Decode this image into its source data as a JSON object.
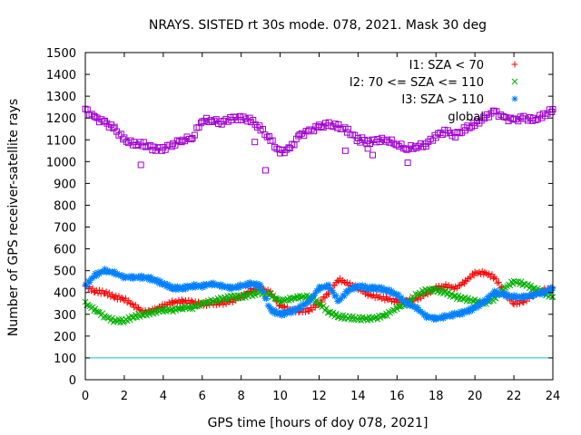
{
  "chart_data": {
    "type": "scatter",
    "title": "NRAYS. SISTED rt 30s mode. 078, 2021. Mask 30 deg",
    "xlabel": "GPS time [hours of doy 078, 2021]",
    "ylabel": "Number of GPS receiver-satellite rays",
    "xlim": [
      0,
      24
    ],
    "ylim": [
      0,
      1500
    ],
    "xticks": [
      0,
      2,
      4,
      6,
      8,
      10,
      12,
      14,
      16,
      18,
      20,
      22,
      24
    ],
    "yticks": [
      0,
      100,
      200,
      300,
      400,
      500,
      600,
      700,
      800,
      900,
      1000,
      1100,
      1200,
      1300,
      1400,
      1500
    ],
    "threshold_line": {
      "y": 100,
      "color": "#00c0e0"
    },
    "legend_position": "top-right",
    "series": [
      {
        "name": "I1: SZA < 70",
        "marker": "plus",
        "color": "#ff0000",
        "x": [
          0,
          0.5,
          1,
          1.5,
          2,
          2.5,
          3,
          3.5,
          4,
          4.5,
          5,
          5.5,
          6,
          6.5,
          7,
          7.5,
          8,
          8.5,
          9,
          9.5,
          10,
          10.5,
          11,
          11.5,
          12,
          12.5,
          13,
          13.5,
          14,
          14.5,
          15,
          15.5,
          16,
          16.5,
          17,
          17.5,
          18,
          18.5,
          19,
          19.5,
          20,
          20.5,
          21,
          21.5,
          22,
          22.5,
          23,
          23.5,
          24
        ],
        "values": [
          430,
          405,
          400,
          380,
          370,
          340,
          310,
          320,
          340,
          355,
          360,
          355,
          345,
          350,
          350,
          360,
          380,
          410,
          420,
          400,
          340,
          320,
          315,
          320,
          350,
          400,
          460,
          440,
          420,
          390,
          380,
          370,
          360,
          360,
          370,
          395,
          420,
          430,
          420,
          450,
          490,
          490,
          470,
          400,
          350,
          360,
          390,
          410,
          420
        ]
      },
      {
        "name": "I2: 70 <= SZA <= 110",
        "marker": "cross",
        "color": "#00b000",
        "x": [
          0,
          0.5,
          1,
          1.5,
          2,
          2.5,
          3,
          3.5,
          4,
          4.5,
          5,
          5.5,
          6,
          6.5,
          7,
          7.5,
          8,
          8.5,
          9,
          9.5,
          10,
          10.5,
          11,
          11.5,
          12,
          12.5,
          13,
          13.5,
          14,
          14.5,
          15,
          15.5,
          16,
          16.5,
          17,
          17.5,
          18,
          18.5,
          19,
          19.5,
          20,
          20.5,
          21,
          21.5,
          22,
          22.5,
          23,
          23.5,
          24
        ],
        "values": [
          350,
          320,
          290,
          270,
          270,
          290,
          300,
          310,
          320,
          320,
          330,
          330,
          350,
          360,
          370,
          380,
          380,
          390,
          400,
          390,
          360,
          370,
          380,
          380,
          350,
          310,
          290,
          285,
          280,
          280,
          285,
          300,
          330,
          350,
          390,
          410,
          410,
          400,
          380,
          370,
          360,
          350,
          370,
          420,
          450,
          440,
          420,
          400,
          380
        ]
      },
      {
        "name": "I3: SZA > 110",
        "marker": "star",
        "color": "#0080ff",
        "x": [
          0,
          0.5,
          1,
          1.5,
          2,
          2.5,
          3,
          3.5,
          4,
          4.5,
          5,
          5.5,
          6,
          6.5,
          7,
          7.5,
          8,
          8.5,
          9,
          9.5,
          10,
          10.5,
          11,
          11.5,
          12,
          12.5,
          13,
          13.5,
          14,
          14.5,
          15,
          15.5,
          16,
          16.5,
          17,
          17.5,
          18,
          18.5,
          19,
          19.5,
          20,
          20.5,
          21,
          21.5,
          22,
          22.5,
          23,
          23.5,
          24
        ],
        "values": [
          430,
          480,
          500,
          490,
          470,
          470,
          470,
          460,
          440,
          420,
          420,
          430,
          430,
          440,
          430,
          420,
          430,
          440,
          430,
          320,
          300,
          310,
          330,
          360,
          420,
          430,
          360,
          410,
          430,
          420,
          420,
          410,
          390,
          350,
          330,
          290,
          280,
          290,
          300,
          310,
          330,
          360,
          400,
          390,
          380,
          380,
          390,
          400,
          420
        ]
      },
      {
        "name": "global",
        "marker": "square",
        "color": "#a000d0",
        "x": [
          0,
          0.5,
          1,
          1.5,
          2,
          2.5,
          3,
          3.5,
          4,
          4.5,
          5,
          5.5,
          6,
          6.5,
          7,
          7.5,
          8,
          8.5,
          9,
          9.5,
          10,
          10.5,
          11,
          11.5,
          12,
          12.5,
          13,
          13.5,
          14,
          14.5,
          15,
          15.5,
          16,
          16.5,
          17,
          17.5,
          18,
          18.5,
          19,
          19.5,
          20,
          20.5,
          21,
          21.5,
          22,
          22.5,
          23,
          23.5,
          24
        ],
        "values": [
          1240,
          1200,
          1180,
          1150,
          1100,
          1080,
          1080,
          1060,
          1060,
          1080,
          1100,
          1110,
          1190,
          1190,
          1180,
          1200,
          1200,
          1190,
          1150,
          1100,
          1040,
          1060,
          1120,
          1140,
          1160,
          1170,
          1160,
          1140,
          1100,
          1090,
          1100,
          1100,
          1080,
          1060,
          1070,
          1080,
          1120,
          1140,
          1120,
          1150,
          1170,
          1200,
          1230,
          1200,
          1190,
          1200,
          1190,
          1210,
          1240
        ],
        "outliers_x": [
          2.85,
          8.7,
          9.25,
          13.35,
          14.5,
          14.75,
          16.55,
          14.2
        ],
        "outliers_y": [
          985,
          1090,
          960,
          1050,
          1060,
          1030,
          995,
          1110
        ]
      }
    ]
  }
}
